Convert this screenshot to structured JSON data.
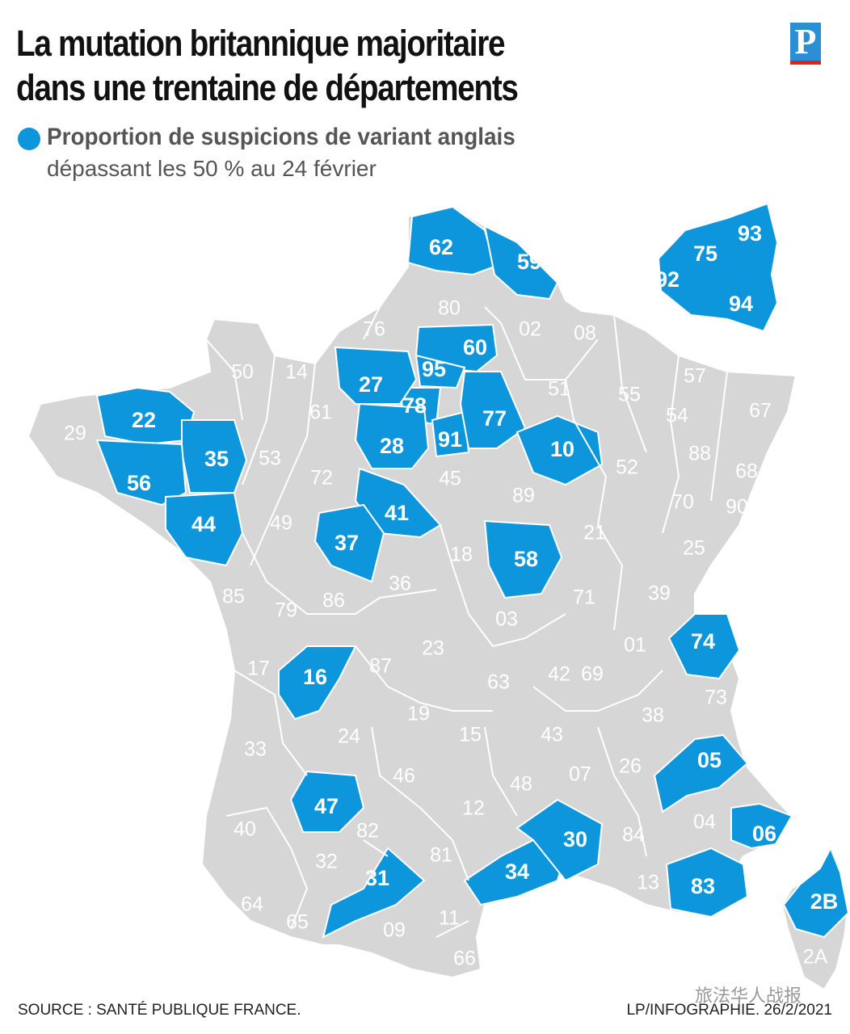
{
  "header": {
    "title_line1": "La mutation britannique majoritaire",
    "title_line2": "dans une trentaine de départements",
    "logo": "P"
  },
  "legend": {
    "line1": "Proportion de suspicions de variant anglais",
    "line2": "dépassant les 50 % au 24 février",
    "color": "#0d96dc"
  },
  "colors": {
    "highlight": "#0d96dc",
    "other": "#d6d6d6",
    "border": "#ffffff"
  },
  "highlighted": [
    "62",
    "59",
    "60",
    "95",
    "78",
    "91",
    "77",
    "27",
    "28",
    "10",
    "22",
    "35",
    "56",
    "44",
    "41",
    "37",
    "58",
    "16",
    "47",
    "31",
    "34",
    "30",
    "83",
    "06",
    "05",
    "74",
    "2B",
    "75",
    "92",
    "93",
    "94"
  ],
  "departments": [
    "80",
    "76",
    "02",
    "08",
    "50",
    "14",
    "61",
    "51",
    "55",
    "57",
    "67",
    "54",
    "88",
    "68",
    "90",
    "70",
    "52",
    "29",
    "53",
    "72",
    "45",
    "89",
    "21",
    "25",
    "49",
    "18",
    "85",
    "79",
    "86",
    "36",
    "71",
    "39",
    "03",
    "01",
    "17",
    "87",
    "23",
    "69",
    "42",
    "63",
    "73",
    "38",
    "19",
    "24",
    "15",
    "43",
    "33",
    "26",
    "07",
    "46",
    "48",
    "40",
    "04",
    "82",
    "12",
    "32",
    "81",
    "13",
    "64",
    "65",
    "09",
    "11",
    "66",
    "2A"
  ],
  "footer": {
    "source": "SOURCE : SANTÉ PUBLIQUE FRANCE.",
    "credit": "LP/INFOGRAPHIE.  26/2/2021",
    "watermark": "旅法华人战报"
  }
}
